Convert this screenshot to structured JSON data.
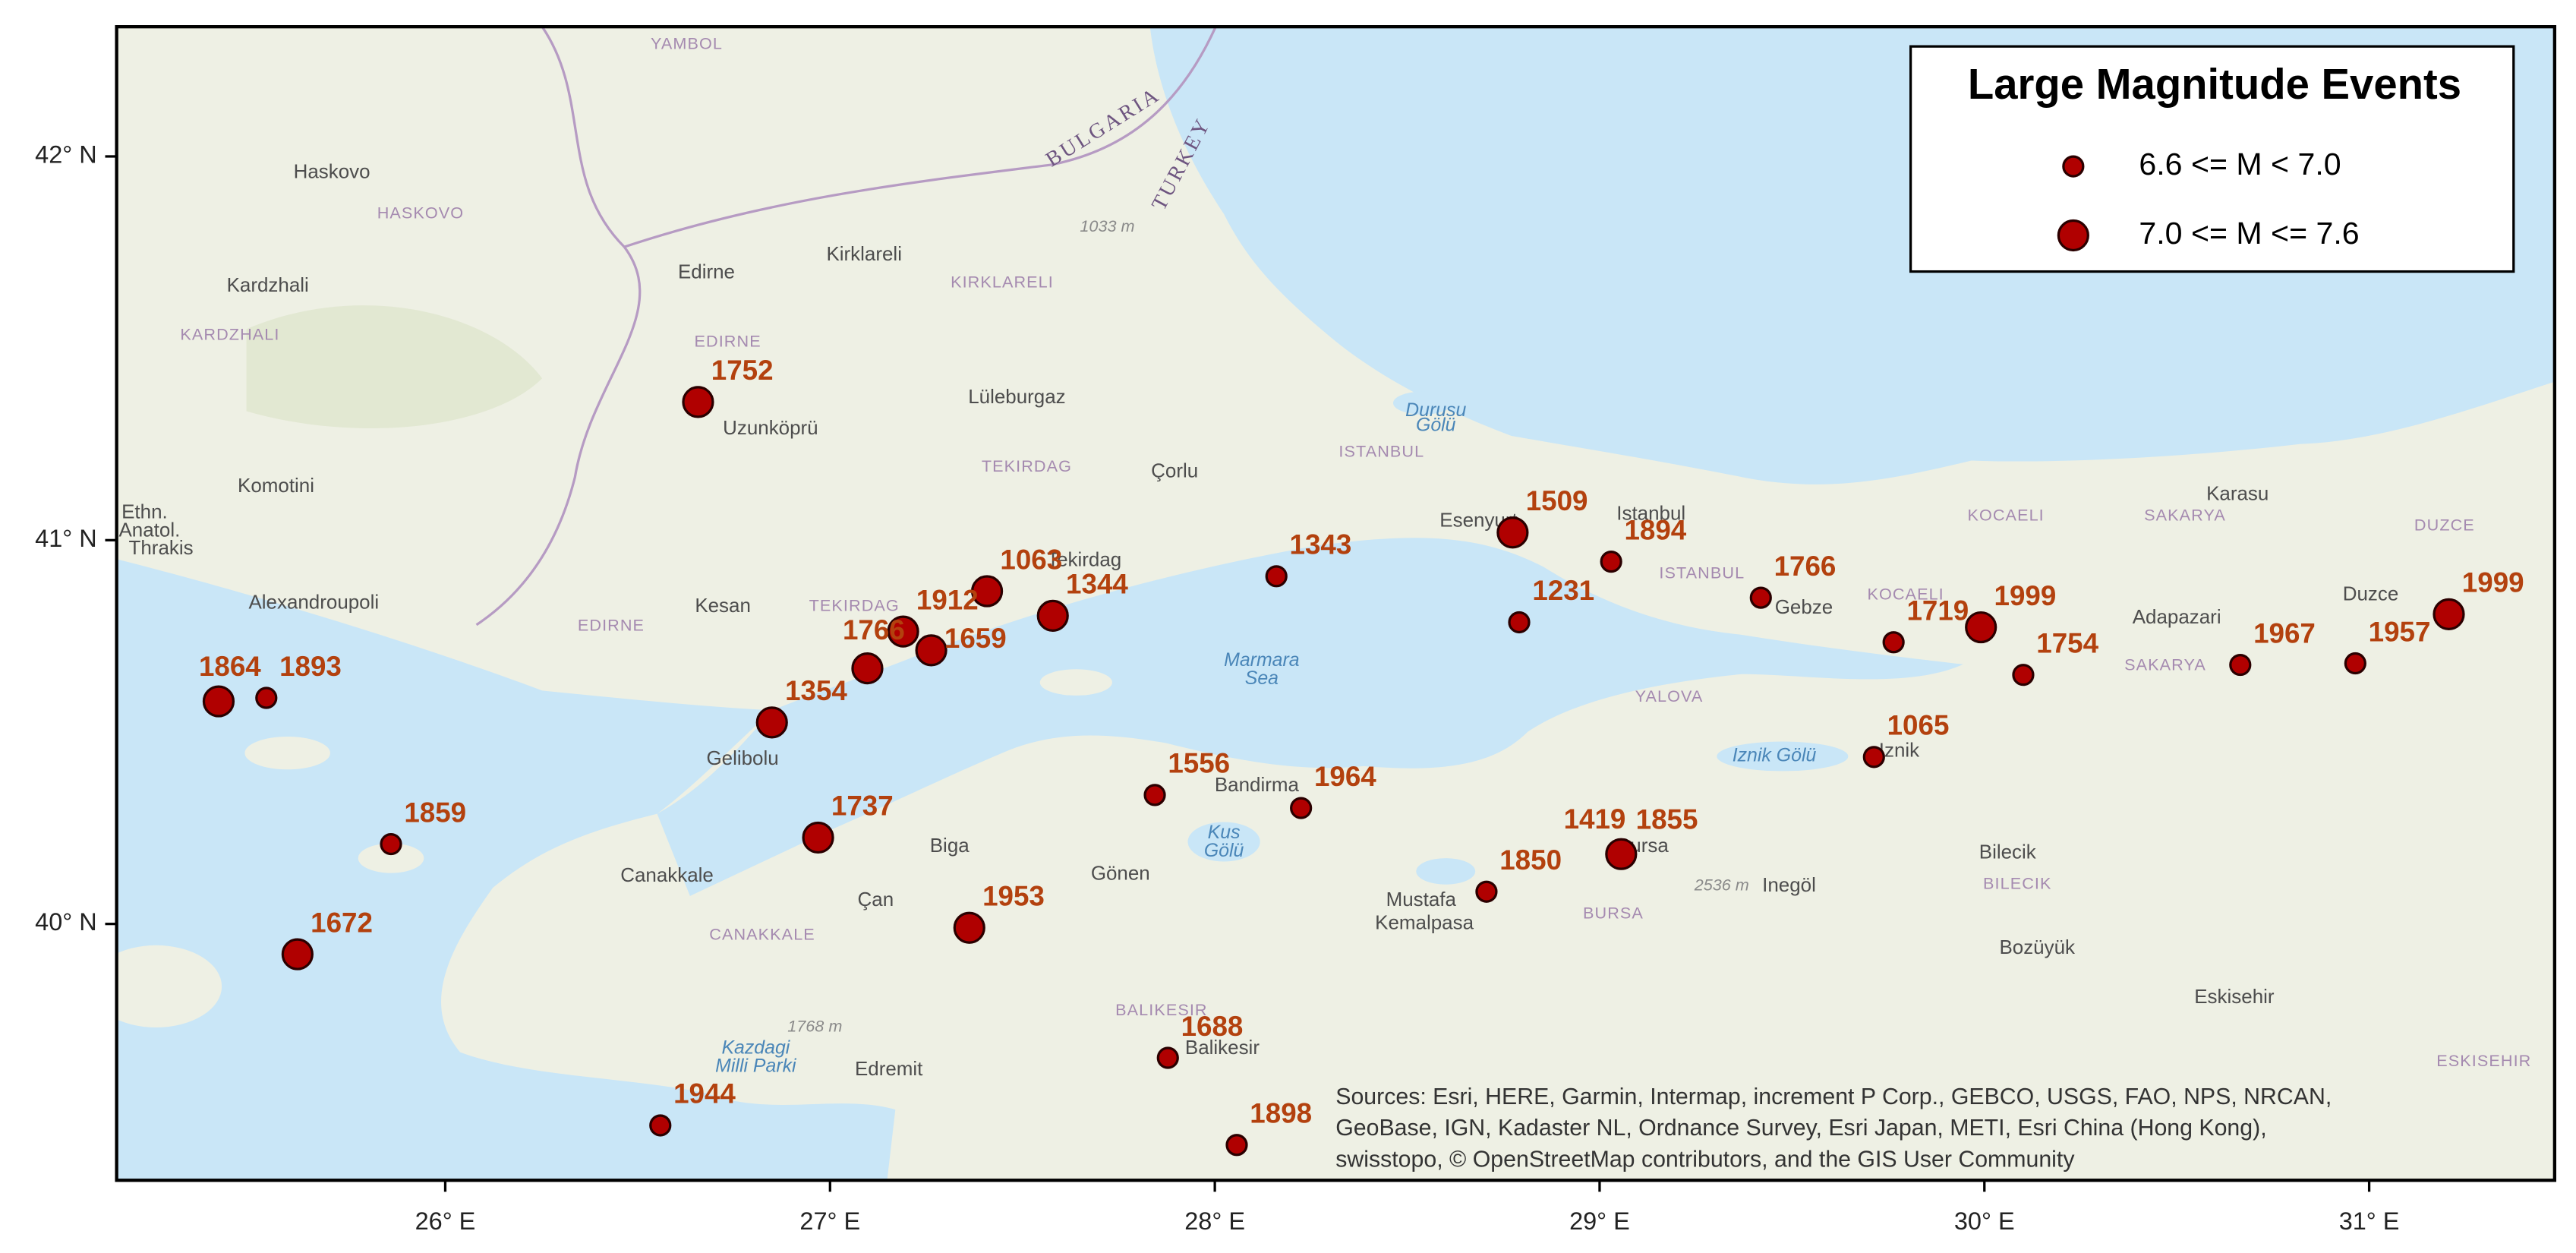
{
  "chart_data": {
    "type": "map",
    "title": "Large Magnitude Events",
    "xlim": [
      25.146,
      31.482
    ],
    "ylim": [
      39.332,
      42.338
    ],
    "xticks": [
      {
        "value": 26,
        "label": "26° E"
      },
      {
        "value": 27,
        "label": "27° E"
      },
      {
        "value": 28,
        "label": "28° E"
      },
      {
        "value": 29,
        "label": "29° E"
      },
      {
        "value": 30,
        "label": "30° E"
      },
      {
        "value": 31,
        "label": "31° E"
      }
    ],
    "yticks": [
      {
        "value": 40,
        "label": "40° N"
      },
      {
        "value": 41,
        "label": "41° N"
      },
      {
        "value": 42,
        "label": "42° N"
      }
    ],
    "series": [
      {
        "name": "6.6 <= M < 7.0",
        "color": "#b00000",
        "events": [
          {
            "year": 1894,
            "lon": 29.03,
            "lat": 40.944
          },
          {
            "year": 1343,
            "lon": 28.16,
            "lat": 40.906
          },
          {
            "year": 1231,
            "lon": 28.791,
            "lat": 40.786
          },
          {
            "year": 1766,
            "lon": 29.419,
            "lat": 40.85
          },
          {
            "year": 1893,
            "lon": 25.535,
            "lat": 40.589
          },
          {
            "year": 1859,
            "lon": 25.859,
            "lat": 40.208
          },
          {
            "year": 1556,
            "lon": 27.844,
            "lat": 40.336
          },
          {
            "year": 1964,
            "lon": 28.224,
            "lat": 40.302
          },
          {
            "year": 1855,
            "lon": 29.06,
            "lat": 40.19
          },
          {
            "year": 1850,
            "lon": 28.706,
            "lat": 40.084
          },
          {
            "year": 1688,
            "lon": 27.878,
            "lat": 39.651
          },
          {
            "year": 1898,
            "lon": 28.057,
            "lat": 39.424
          },
          {
            "year": 1944,
            "lon": 26.559,
            "lat": 39.475
          },
          {
            "year": 1719,
            "lon": 29.764,
            "lat": 40.734
          },
          {
            "year": 1754,
            "lon": 30.101,
            "lat": 40.649
          },
          {
            "year": 1065,
            "lon": 29.713,
            "lat": 40.435
          },
          {
            "year": 1967,
            "lon": 30.665,
            "lat": 40.675
          },
          {
            "year": 1957,
            "lon": 30.964,
            "lat": 40.679
          }
        ]
      },
      {
        "name": "7.0 <= M <= 7.6",
        "color": "#b00000",
        "events": [
          {
            "year": 1752,
            "lon": 26.657,
            "lat": 41.36
          },
          {
            "year": 1509,
            "lon": 28.774,
            "lat": 41.02
          },
          {
            "year": 1063,
            "lon": 27.408,
            "lat": 40.867
          },
          {
            "year": 1344,
            "lon": 27.579,
            "lat": 40.803
          },
          {
            "year": 1912,
            "lon": 27.19,
            "lat": 40.762
          },
          {
            "year": 1766,
            "lon": 27.097,
            "lat": 40.666
          },
          {
            "year": 1659,
            "lon": 27.263,
            "lat": 40.713
          },
          {
            "year": 1354,
            "lon": 26.849,
            "lat": 40.525
          },
          {
            "year": 1864,
            "lon": 25.411,
            "lat": 40.58
          },
          {
            "year": 1672,
            "lon": 25.616,
            "lat": 39.921
          },
          {
            "year": 1737,
            "lon": 26.969,
            "lat": 40.225
          },
          {
            "year": 1953,
            "lon": 27.362,
            "lat": 39.99
          },
          {
            "year": 1419,
            "lon": 29.056,
            "lat": 40.182
          },
          {
            "year": 1999,
            "lon": 29.991,
            "lat": 40.773
          },
          {
            "year": 1999,
            "lon": 31.207,
            "lat": 40.807
          }
        ]
      }
    ],
    "places": [
      "YAMBOL",
      "Haskovo",
      "HASKOVO",
      "Kardzhali",
      "KARDZHALI",
      "Edirne",
      "EDIRNE",
      "Kirklareli",
      "KIRKLARELI",
      "BULGARIA",
      "TURKEY",
      "1033 m",
      "Lüleburgaz",
      "Uzunköprü",
      "Durusu",
      "Gölü",
      "ISTANBUL",
      "TEKIRDAG",
      "Çorlu",
      "Komotini",
      "Ethn.",
      "Anatol.",
      "Thrakis",
      "Karasu",
      "KOCAELI",
      "SAKARYA",
      "DUZCE",
      "Esenyurt",
      "Istanbul",
      "ISTANBUL",
      "Tekirdag",
      "Alexandroupoli",
      "Kesan",
      "EDIRNE",
      "TEKIRDAG",
      "Gebze",
      "KOCAELI",
      "Adapazari",
      "Duzce",
      "SAKARYA",
      "Marmara",
      "Sea",
      "YALOVA",
      "Iznik Gölü",
      "Iznik",
      "Gelibolu",
      "Bandirma",
      "Biga",
      "Kus",
      "Gölü",
      "Bursa",
      "Bilecik",
      "Canakkale",
      "Gönen",
      "2536 m",
      "Inegöl",
      "BILECIK",
      "Çan",
      "Mustafa",
      "Kemalpasa",
      "BURSA",
      "CANAKKALE",
      "Bozüyük",
      "Eskisehir",
      "BALIKESIR",
      "1768 m",
      "Balikesir",
      "Kazdagi",
      "Milli Parki",
      "Edremit",
      "ESKISEHIR"
    ],
    "sources": [
      "Sources: Esri, HERE, Garmin, Intermap, increment P Corp., GEBCO, USGS, FAO, NPS, NRCAN,",
      "GeoBase, IGN, Kadaster NL, Ordnance Survey, Esri Japan, METI, Esri China (Hong Kong),",
      "swisstopo, © OpenStreetMap contributors, and the GIS User Community"
    ]
  }
}
